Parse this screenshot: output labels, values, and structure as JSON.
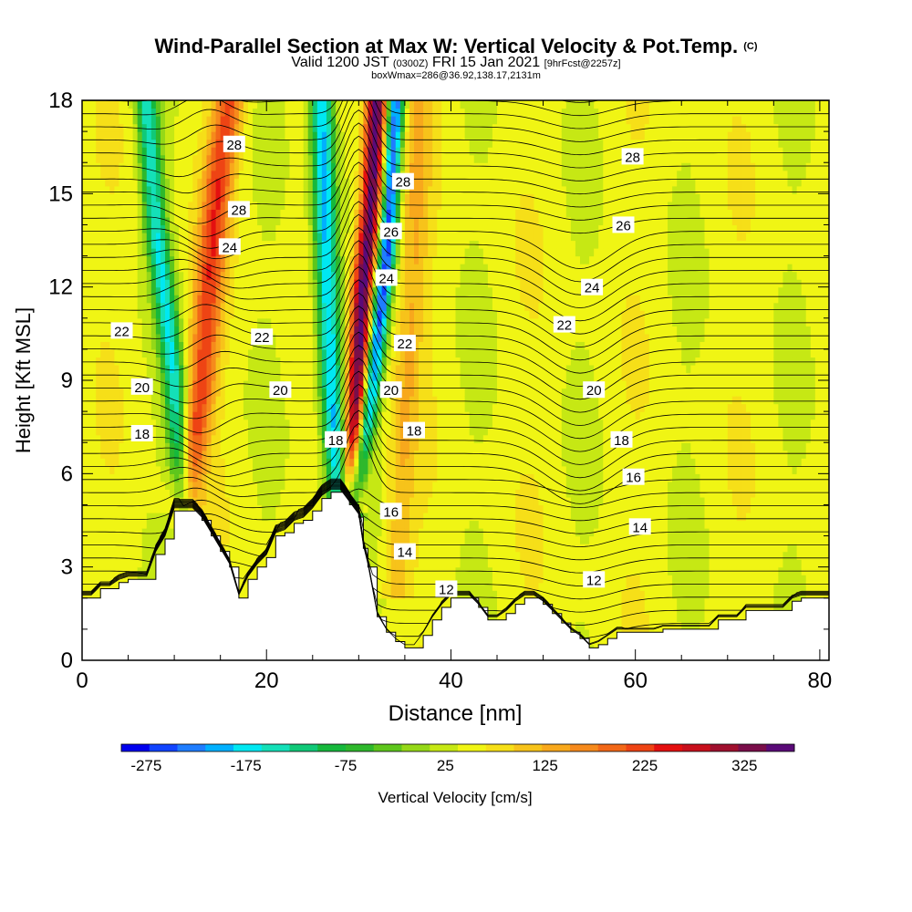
{
  "header": {
    "title": "Wind-Parallel Section at Max W: Vertical Velocity & Pot.Temp.",
    "copyright": "(C)",
    "valid_prefix": "Valid 1200 JST",
    "valid_utc": "(0300Z)",
    "valid_date": "FRI 15 Jan 2021",
    "forecast": "[9hrFcst@2257z]",
    "box_info": "boxWmax=286@36.92,138.17,2131m"
  },
  "chart_data": {
    "type": "heatmap",
    "title": "Wind-Parallel Section at Max W: Vertical Velocity & Pot.Temp.",
    "xlabel": "Distance [nm]",
    "ylabel": "Height [Kft MSL]",
    "xlim": [
      0,
      81
    ],
    "ylim": [
      0,
      18
    ],
    "x_ticks": [
      "0",
      "20",
      "40",
      "60",
      "80"
    ],
    "y_ticks": [
      "0",
      "3",
      "6",
      "9",
      "12",
      "15",
      "18"
    ],
    "colorbar": {
      "label": "Vertical Velocity [cm/s]",
      "min": -300,
      "max": 375,
      "step": 25,
      "tick_labels": [
        "-275",
        "-175",
        "-75",
        "25",
        "125",
        "225",
        "325"
      ],
      "colors": [
        "#0000ee",
        "#1144ff",
        "#1f7dff",
        "#00b0ff",
        "#00e8f2",
        "#14e0b8",
        "#10c978",
        "#16b83c",
        "#2eb82c",
        "#5ec61c",
        "#95d818",
        "#c6e814",
        "#f0f514",
        "#f6df18",
        "#f7c31a",
        "#f8a81c",
        "#f68a1c",
        "#f26818",
        "#ee4414",
        "#e41010",
        "#c8101c",
        "#a0102e",
        "#7a0e4a",
        "#5a0a78"
      ]
    },
    "terrain_kft": [
      [
        0,
        2.0
      ],
      [
        1,
        2.0
      ],
      [
        2,
        2.3
      ],
      [
        3,
        2.3
      ],
      [
        4,
        2.5
      ],
      [
        5,
        2.6
      ],
      [
        6,
        2.6
      ],
      [
        7,
        2.6
      ],
      [
        8,
        3.4
      ],
      [
        9,
        3.9
      ],
      [
        10,
        4.8
      ],
      [
        11,
        4.8
      ],
      [
        12,
        4.8
      ],
      [
        13,
        4.5
      ],
      [
        14,
        4.0
      ],
      [
        15,
        3.5
      ],
      [
        16,
        3.0
      ],
      [
        17,
        2.0
      ],
      [
        18,
        2.6
      ],
      [
        19,
        3.0
      ],
      [
        20,
        3.3
      ],
      [
        21,
        4.0
      ],
      [
        22,
        4.1
      ],
      [
        23,
        4.4
      ],
      [
        24,
        4.5
      ],
      [
        25,
        4.8
      ],
      [
        26,
        5.2
      ],
      [
        27,
        5.4
      ],
      [
        28,
        5.4
      ],
      [
        29,
        5.0
      ],
      [
        30,
        4.6
      ],
      [
        30.5,
        3.6
      ],
      [
        31,
        3.0
      ],
      [
        32,
        1.4
      ],
      [
        33,
        0.9
      ],
      [
        34,
        0.6
      ],
      [
        35,
        0.4
      ],
      [
        36,
        0.4
      ],
      [
        37,
        0.8
      ],
      [
        38,
        1.3
      ],
      [
        39,
        1.7
      ],
      [
        40,
        2.0
      ],
      [
        41,
        2.0
      ],
      [
        42,
        2.0
      ],
      [
        43,
        1.7
      ],
      [
        44,
        1.3
      ],
      [
        45,
        1.3
      ],
      [
        46,
        1.5
      ],
      [
        47,
        1.8
      ],
      [
        48,
        2.0
      ],
      [
        49,
        2.0
      ],
      [
        50,
        1.8
      ],
      [
        51,
        1.5
      ],
      [
        52,
        1.2
      ],
      [
        53,
        0.9
      ],
      [
        54,
        0.7
      ],
      [
        55,
        0.4
      ],
      [
        56,
        0.5
      ],
      [
        57,
        0.7
      ],
      [
        58,
        0.9
      ],
      [
        59,
        0.9
      ],
      [
        60,
        0.9
      ],
      [
        61,
        0.9
      ],
      [
        62,
        0.9
      ],
      [
        63,
        1.0
      ],
      [
        64,
        1.0
      ],
      [
        65,
        1.0
      ],
      [
        66,
        1.0
      ],
      [
        67,
        1.0
      ],
      [
        68,
        1.0
      ],
      [
        69,
        1.3
      ],
      [
        70,
        1.3
      ],
      [
        71,
        1.3
      ],
      [
        72,
        1.6
      ],
      [
        73,
        1.6
      ],
      [
        74,
        1.6
      ],
      [
        75,
        1.6
      ],
      [
        76,
        1.6
      ],
      [
        77,
        1.9
      ],
      [
        78,
        2.0
      ],
      [
        79,
        2.0
      ],
      [
        80,
        2.0
      ],
      [
        81,
        2.0
      ]
    ],
    "updraft_bands": [
      {
        "name": "west",
        "peak": 150,
        "path": [
          [
            11,
            4.8
          ],
          [
            13,
            9
          ],
          [
            14,
            13
          ],
          [
            15,
            16
          ],
          [
            16,
            18
          ]
        ],
        "width_nm": 1.6
      },
      {
        "name": "central",
        "peak": 300,
        "path": [
          [
            29,
            4.8
          ],
          [
            30,
            9
          ],
          [
            30.5,
            12
          ],
          [
            31.5,
            15
          ],
          [
            32,
            18
          ]
        ],
        "width_nm": 1.2
      },
      {
        "name": "east",
        "peak": 60,
        "path": [
          [
            34,
            2
          ],
          [
            35,
            8
          ],
          [
            36,
            13
          ],
          [
            36.5,
            18
          ]
        ],
        "width_nm": 1.5
      }
    ],
    "downdraft_bands": [
      {
        "name": "west",
        "peak": -175,
        "path": [
          [
            11,
            4.8
          ],
          [
            10,
            9
          ],
          [
            8,
            14
          ],
          [
            7,
            18
          ]
        ],
        "width_nm": 1.2
      },
      {
        "name": "central-west",
        "peak": -225,
        "path": [
          [
            28,
            4.8
          ],
          [
            27,
            9
          ],
          [
            26.5,
            13
          ],
          [
            26,
            18
          ]
        ],
        "width_nm": 1.3
      },
      {
        "name": "central-east",
        "peak": -275,
        "path": [
          [
            29,
            4.5
          ],
          [
            31,
            8
          ],
          [
            33,
            13
          ],
          [
            34,
            18
          ]
        ],
        "width_nm": 1.0
      }
    ],
    "contour_labels": [
      {
        "text": "28",
        "x": 16.5,
        "y": 16.6
      },
      {
        "text": "28",
        "x": 17,
        "y": 14.5
      },
      {
        "text": "24",
        "x": 16,
        "y": 13.3
      },
      {
        "text": "22",
        "x": 4.3,
        "y": 10.6
      },
      {
        "text": "22",
        "x": 19.5,
        "y": 10.4
      },
      {
        "text": "20",
        "x": 6.5,
        "y": 8.8
      },
      {
        "text": "20",
        "x": 21.5,
        "y": 8.7
      },
      {
        "text": "18",
        "x": 6.5,
        "y": 7.3
      },
      {
        "text": "28",
        "x": 34.8,
        "y": 15.4
      },
      {
        "text": "26",
        "x": 33.5,
        "y": 13.8
      },
      {
        "text": "24",
        "x": 33,
        "y": 12.3
      },
      {
        "text": "22",
        "x": 35,
        "y": 10.2
      },
      {
        "text": "20",
        "x": 33.5,
        "y": 8.7
      },
      {
        "text": "18",
        "x": 27.5,
        "y": 7.1
      },
      {
        "text": "18",
        "x": 36,
        "y": 7.4
      },
      {
        "text": "16",
        "x": 33.5,
        "y": 4.8
      },
      {
        "text": "14",
        "x": 35,
        "y": 3.5
      },
      {
        "text": "12",
        "x": 39.5,
        "y": 2.3
      },
      {
        "text": "28",
        "x": 59.7,
        "y": 16.2
      },
      {
        "text": "26",
        "x": 58.7,
        "y": 14.0
      },
      {
        "text": "24",
        "x": 55.3,
        "y": 12.0
      },
      {
        "text": "22",
        "x": 52.3,
        "y": 10.8
      },
      {
        "text": "20",
        "x": 55.5,
        "y": 8.7
      },
      {
        "text": "18",
        "x": 58.5,
        "y": 7.1
      },
      {
        "text": "16",
        "x": 59.8,
        "y": 5.9
      },
      {
        "text": "14",
        "x": 60.5,
        "y": 4.3
      },
      {
        "text": "12",
        "x": 55.5,
        "y": 2.6
      }
    ]
  }
}
